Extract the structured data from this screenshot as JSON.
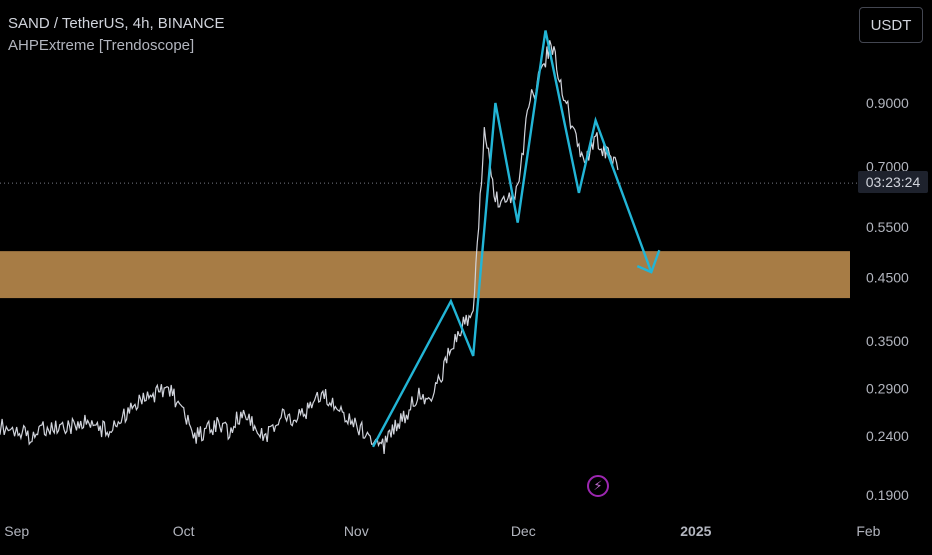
{
  "legend": {
    "title": "SAND / TetherUS, 4h, BINANCE",
    "indicator": "AHPExtreme [Trendoscope]"
  },
  "currency_label": "USDT",
  "countdown": "03:23:24",
  "event_icon": "lightning-icon",
  "colors": {
    "background": "#000000",
    "price": "#d1d4dc",
    "zigzag": "#22b5d6",
    "zone": "#b98a4c",
    "axis_text": "#b2b5be"
  },
  "chart_data": {
    "type": "line",
    "title": "SAND / TetherUS, 4h, BINANCE",
    "x_tick_labels": [
      "Sep",
      "Oct",
      "Nov",
      "Dec",
      "2025",
      "Feb"
    ],
    "y_tick_labels": [
      "0.9000",
      "0.7000",
      "0.5500",
      "0.4500",
      "0.3500",
      "0.2900",
      "0.2400",
      "0.1900"
    ],
    "y_scale": "log",
    "ylim": [
      0.18,
      1.35
    ],
    "xlim": [
      "2024-08-29",
      "2025-02-15"
    ],
    "current_price_line": 0.655,
    "series": [
      {
        "kind": "price",
        "x": [
          "2024-08-29",
          "2024-09-01",
          "2024-09-03",
          "2024-09-05",
          "2024-09-07",
          "2024-09-09",
          "2024-09-11",
          "2024-09-13",
          "2024-09-15",
          "2024-09-17",
          "2024-09-19",
          "2024-09-21",
          "2024-09-23",
          "2024-09-25",
          "2024-09-27",
          "2024-09-29",
          "2024-10-01",
          "2024-10-03",
          "2024-10-05",
          "2024-10-07",
          "2024-10-09",
          "2024-10-11",
          "2024-10-13",
          "2024-10-15",
          "2024-10-17",
          "2024-10-19",
          "2024-10-21",
          "2024-10-23",
          "2024-10-25",
          "2024-10-27",
          "2024-10-29",
          "2024-10-31",
          "2024-11-02",
          "2024-11-04",
          "2024-11-06",
          "2024-11-08",
          "2024-11-10",
          "2024-11-12",
          "2024-11-14",
          "2024-11-16",
          "2024-11-18",
          "2024-11-20",
          "2024-11-22",
          "2024-11-24",
          "2024-11-26",
          "2024-11-28",
          "2024-11-30",
          "2024-12-02",
          "2024-12-04",
          "2024-12-06",
          "2024-12-08",
          "2024-12-10",
          "2024-12-12",
          "2024-12-14",
          "2024-12-16",
          "2024-12-18"
        ],
        "y": [
          0.25,
          0.245,
          0.24,
          0.245,
          0.25,
          0.245,
          0.25,
          0.255,
          0.25,
          0.245,
          0.25,
          0.265,
          0.275,
          0.28,
          0.29,
          0.285,
          0.26,
          0.24,
          0.245,
          0.25,
          0.245,
          0.26,
          0.255,
          0.24,
          0.245,
          0.265,
          0.255,
          0.265,
          0.285,
          0.28,
          0.265,
          0.255,
          0.245,
          0.24,
          0.23,
          0.25,
          0.26,
          0.285,
          0.28,
          0.3,
          0.34,
          0.37,
          0.39,
          0.8,
          0.62,
          0.6,
          0.64,
          0.9,
          1.0,
          1.15,
          0.96,
          0.8,
          0.7,
          0.78,
          0.74,
          0.69
        ]
      },
      {
        "kind": "zigzag",
        "x": [
          "2024-11-04",
          "2024-11-18",
          "2024-11-22",
          "2024-11-26",
          "2024-11-30",
          "2024-12-05",
          "2024-12-11",
          "2024-12-14",
          "2024-12-24"
        ],
        "y": [
          0.23,
          0.41,
          0.33,
          0.9,
          0.56,
          1.2,
          0.63,
          0.84,
          0.46
        ]
      }
    ],
    "zones": [
      {
        "y_low": 0.415,
        "y_high": 0.5,
        "color": "#b98a4c"
      }
    ],
    "grid": false,
    "legend": "top-left"
  }
}
